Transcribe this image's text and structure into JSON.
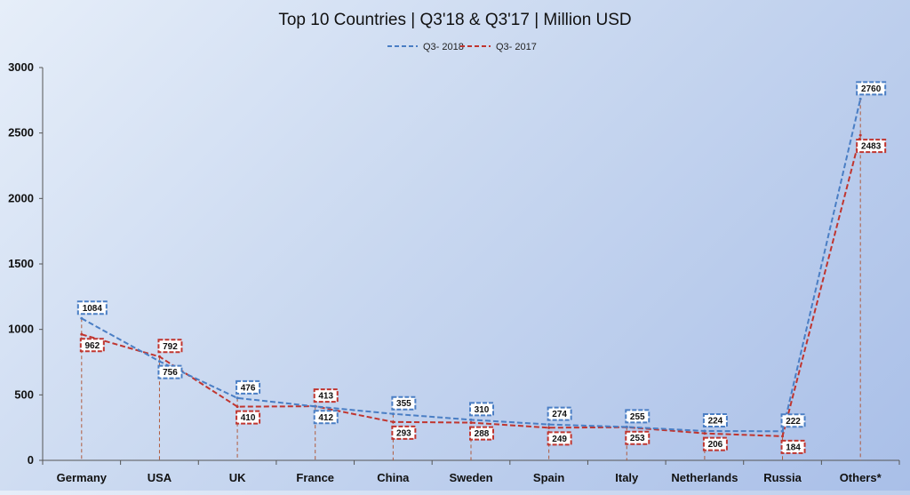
{
  "chart_data": {
    "type": "line",
    "title": "Top 10 Countries | Q3'18 & Q3'17 | Million USD",
    "categories": [
      "Germany",
      "USA",
      "UK",
      "France",
      "China",
      "Sweden",
      "Spain",
      "Italy",
      "Netherlands",
      "Russia",
      "Others*"
    ],
    "series": [
      {
        "name": "Q3- 2018",
        "color": "#4a7ec4",
        "values": [
          1084,
          756,
          476,
          412,
          355,
          310,
          274,
          255,
          224,
          222,
          2760
        ]
      },
      {
        "name": "Q3- 2017",
        "color": "#c0352f",
        "values": [
          962,
          792,
          410,
          413,
          293,
          288,
          249,
          253,
          206,
          184,
          2483
        ]
      }
    ],
    "ylim": [
      0,
      3000
    ],
    "yticks": [
      "0",
      "500",
      "1000",
      "1500",
      "2000",
      "2500",
      "3000"
    ],
    "legend": "top-center",
    "grid": false,
    "line_style": "dashed",
    "drop_lines": true,
    "background": "#c9d8f0"
  }
}
